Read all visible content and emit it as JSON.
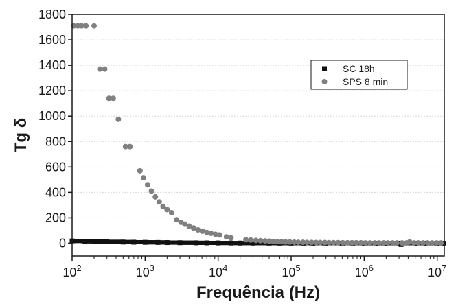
{
  "chart_data": {
    "type": "scatter",
    "title": "",
    "xlabel": "Frequência (Hz)",
    "ylabel": "Tg δ",
    "x_scale": "log",
    "xlim": [
      100,
      12500000
    ],
    "ylim": [
      -100,
      1800
    ],
    "x_ticks": [
      {
        "value": 100,
        "base": "10",
        "exp": "2"
      },
      {
        "value": 1000,
        "base": "10",
        "exp": "3"
      },
      {
        "value": 10000,
        "base": "10",
        "exp": "4"
      },
      {
        "value": 100000,
        "base": "10",
        "exp": "5"
      },
      {
        "value": 1000000,
        "base": "10",
        "exp": "6"
      },
      {
        "value": 10000000,
        "base": "10",
        "exp": "7"
      }
    ],
    "y_ticks": [
      "0",
      "200",
      "400",
      "600",
      "800",
      "1000",
      "1200",
      "1400",
      "1600",
      "1800"
    ],
    "grid": "horizontal",
    "legend": "top-right",
    "series": [
      {
        "name": "SC 18h",
        "marker": "square",
        "color": "#111111",
        "x": [
          100,
          150,
          200,
          300,
          500,
          700,
          1000,
          1500,
          2000,
          3000,
          5000,
          7000,
          10000,
          15000,
          20000,
          30000,
          50000,
          70000,
          100000,
          150000,
          200000,
          300000,
          500000,
          700000,
          1000000,
          1500000,
          2000000,
          3000000,
          3200000,
          5000000,
          7000000,
          10000000,
          12000000
        ],
        "y": [
          18,
          15,
          13,
          11,
          9,
          8,
          7,
          6,
          5,
          4,
          3,
          2.5,
          2,
          1.5,
          1.2,
          1,
          0.8,
          0.6,
          0.5,
          0.4,
          0.3,
          0.3,
          0.2,
          0.2,
          0.1,
          0.1,
          0.1,
          0.1,
          -10,
          0.1,
          0.1,
          0.1,
          0.1
        ]
      },
      {
        "name": "SPS 8 min",
        "marker": "circle",
        "color": "#808080",
        "x": [
          105,
          120,
          135,
          155,
          200,
          240,
          280,
          320,
          365,
          430,
          540,
          620,
          850,
          950,
          1080,
          1220,
          1380,
          1560,
          1760,
          2000,
          2300,
          2700,
          3100,
          3500,
          4000,
          4600,
          5300,
          6100,
          7000,
          8000,
          9200,
          10500,
          13000,
          15000,
          24000,
          28000,
          33000,
          38000,
          44000,
          50000,
          57000,
          65000,
          74000,
          84000,
          96000,
          110000,
          125000,
          145000,
          165000,
          190000,
          220000,
          250000,
          290000,
          330000,
          380000,
          440000,
          510000,
          590000,
          680000,
          780000,
          900000,
          1040000,
          1200000,
          1400000,
          1600000,
          1850000,
          2100000,
          2450000,
          2800000,
          3300000,
          3800000,
          4200000,
          4800000,
          5500000,
          6400000,
          7400000,
          8500000,
          9800000,
          11300000
        ],
        "y": [
          1710,
          1710,
          1710,
          1710,
          1710,
          1370,
          1370,
          1140,
          1140,
          975,
          760,
          760,
          570,
          515,
          460,
          410,
          365,
          325,
          290,
          265,
          240,
          185,
          165,
          150,
          135,
          120,
          105,
          95,
          85,
          78,
          70,
          65,
          50,
          42,
          28,
          25,
          22,
          20,
          18,
          16,
          14,
          12,
          11,
          10,
          9,
          8,
          7,
          7,
          6,
          6,
          5,
          5,
          5,
          4,
          4,
          4,
          3,
          3,
          3,
          3,
          3,
          2,
          2,
          2,
          2,
          2,
          2,
          2,
          2,
          2,
          2,
          10,
          2,
          2,
          2,
          2,
          2,
          2,
          2
        ]
      }
    ]
  }
}
